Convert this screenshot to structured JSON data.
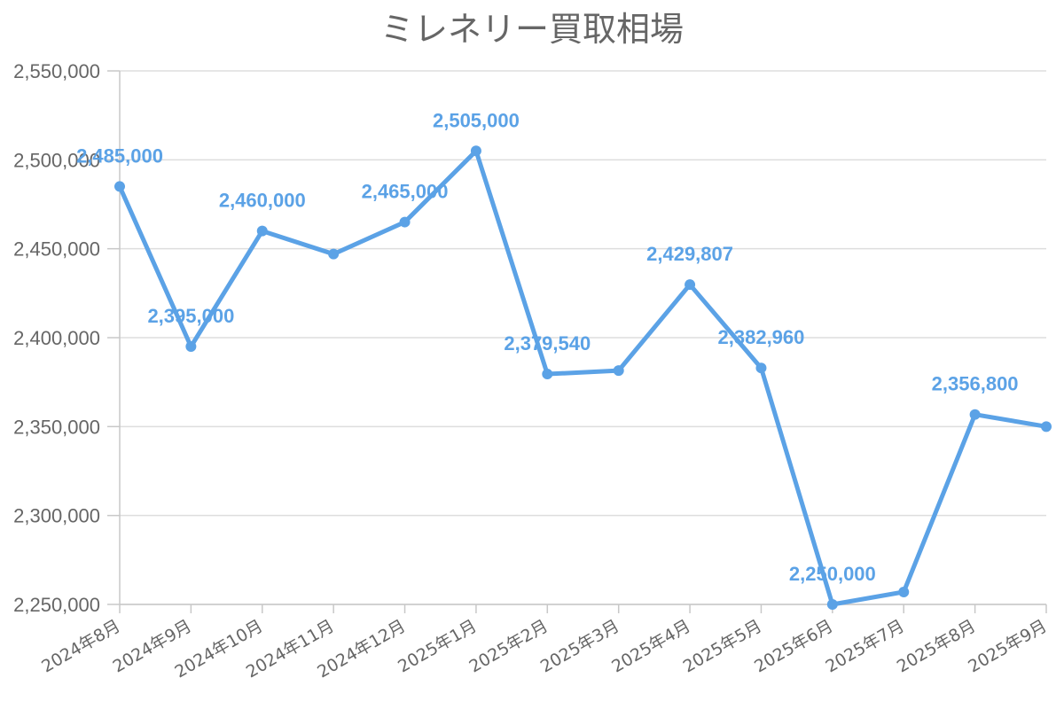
{
  "chart_data": {
    "type": "line",
    "title": "ミレネリー買取相場",
    "xlabel": "",
    "ylabel": "",
    "categories": [
      "2024年8月",
      "2024年9月",
      "2024年10月",
      "2024年11月",
      "2024年12月",
      "2025年1月",
      "2025年2月",
      "2025年3月",
      "2025年4月",
      "2025年5月",
      "2025年6月",
      "2025年7月",
      "2025年8月",
      "2025年9月"
    ],
    "series": [
      {
        "values": [
          2485000,
          2395000,
          2460000,
          2447000,
          2465000,
          2505000,
          2379540,
          2381500,
          2429807,
          2382960,
          2250000,
          2257000,
          2356800,
          2350000
        ],
        "data_labels": [
          "2,485,000",
          "2,395,000",
          "2,460,000",
          "",
          "2,465,000",
          "2,505,000",
          "2,379,540",
          "",
          "2,429,807",
          "2,382,960",
          "2,250,000",
          "",
          "2,356,800",
          ""
        ],
        "color": "#5BA2E6"
      }
    ],
    "ylim": [
      2250000,
      2550000
    ],
    "yticks": [
      2250000,
      2300000,
      2350000,
      2400000,
      2450000,
      2500000,
      2550000
    ],
    "ytick_labels": [
      "2,250,000",
      "2,300,000",
      "2,350,000",
      "2,400,000",
      "2,450,000",
      "2,500,000",
      "2,550,000"
    ],
    "grid": true,
    "legend": "none",
    "colors": {
      "line": "#5BA2E6",
      "grid": "#DDDDDD",
      "axis": "#C8C8C8",
      "text": "#666666"
    }
  }
}
